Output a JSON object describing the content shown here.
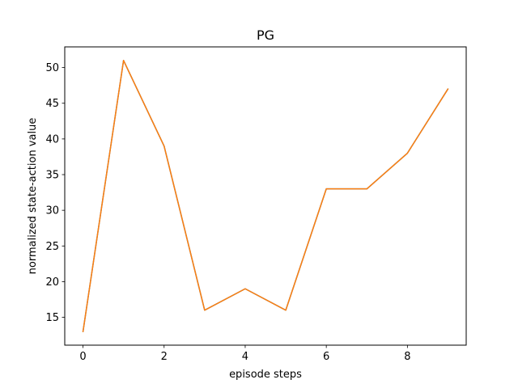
{
  "chart_data": {
    "type": "line",
    "title": "PG",
    "xlabel": "episode steps",
    "ylabel": "normalized state-action value",
    "x": [
      0,
      1,
      2,
      3,
      4,
      5,
      6,
      7,
      8,
      9
    ],
    "series": [
      {
        "values": [
          13,
          51,
          39,
          16,
          19,
          16,
          33,
          33,
          38,
          47
        ],
        "color": "#1f77b4"
      },
      {
        "values": [
          13,
          51,
          39,
          16,
          19,
          16,
          33,
          33,
          38,
          47
        ],
        "color": "#ff7f0e"
      }
    ],
    "xlim": [
      -0.45,
      9.45
    ],
    "ylim": [
      11.1,
      52.9
    ],
    "xticks": [
      0,
      2,
      4,
      6,
      8
    ],
    "yticks": [
      15,
      20,
      25,
      30,
      35,
      40,
      45,
      50
    ],
    "grid": false,
    "legend": false
  }
}
